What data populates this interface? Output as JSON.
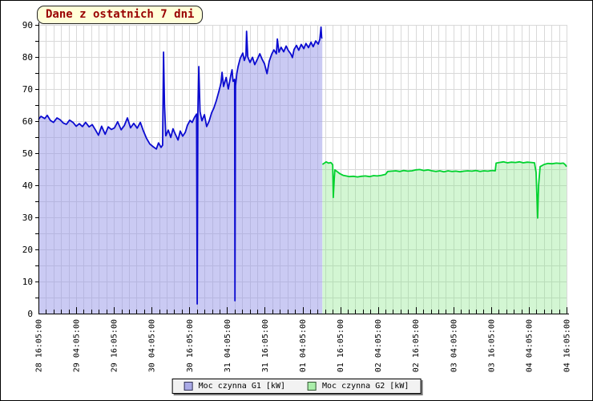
{
  "title": "Dane z ostatnich 7 dni",
  "legend": {
    "items": [
      {
        "label": "Moc czynna G1 [kW]",
        "swatch_color": "#aaaae6",
        "swatch_border": "#333355"
      },
      {
        "label": "Moc czynna G2 [kW]",
        "swatch_color": "#aaeeaa",
        "swatch_border": "#335533"
      }
    ]
  },
  "chart_data": {
    "type": "area",
    "title": "Dane z ostatnich 7 dni",
    "grid": true,
    "legend_position": "bottom-center",
    "x_unit": "hours since 28 16:05:00",
    "x_range": [
      0,
      168
    ],
    "ylim": [
      0,
      90
    ],
    "y_ticks": [
      0,
      10,
      20,
      30,
      40,
      50,
      60,
      70,
      80,
      90
    ],
    "y_minor_step": 5,
    "x_major_step_hours": 12,
    "x_minor_step_hours": 2.4,
    "x_tick_labels": [
      "28 16:05:00",
      "29 04:05:00",
      "29 16:05:00",
      "30 04:05:00",
      "30 16:05:00",
      "31 04:05:00",
      "31 16:05:00",
      "01 04:05:00",
      "01 16:05:00",
      "02 04:05:00",
      "02 16:05:00",
      "03 04:05:00",
      "03 16:05:00",
      "04 04:05:00",
      "04 16:05:00"
    ],
    "colors": {
      "grid": "#d9d9d9",
      "axis": "#000000"
    },
    "series": [
      {
        "name": "Moc czynna G1 [kW]",
        "line_color": "#0b0bd0",
        "fill_color": "rgba(150,150,232,0.5)",
        "points": [
          [
            0,
            60.5
          ],
          [
            0.8,
            61.5
          ],
          [
            2,
            60.8
          ],
          [
            2.8,
            61.8
          ],
          [
            3.8,
            60.2
          ],
          [
            4.8,
            59.6
          ],
          [
            5.9,
            61
          ],
          [
            6.9,
            60.4
          ],
          [
            7.9,
            59.4
          ],
          [
            8.9,
            59
          ],
          [
            9.9,
            60.3
          ],
          [
            11,
            59.6
          ],
          [
            12,
            58.4
          ],
          [
            13,
            59.2
          ],
          [
            14,
            58.3
          ],
          [
            15,
            59.6
          ],
          [
            16.1,
            58.2
          ],
          [
            17.1,
            58.9
          ],
          [
            18.1,
            57.3
          ],
          [
            19.1,
            55.6
          ],
          [
            20.1,
            58.4
          ],
          [
            21.2,
            55.9
          ],
          [
            22.2,
            58.2
          ],
          [
            23.2,
            57.4
          ],
          [
            24.2,
            57.9
          ],
          [
            25.2,
            59.8
          ],
          [
            26.3,
            57.3
          ],
          [
            27.3,
            58.6
          ],
          [
            28.3,
            61
          ],
          [
            29.3,
            57.9
          ],
          [
            30.3,
            59.3
          ],
          [
            31.4,
            57.8
          ],
          [
            32.4,
            59.6
          ],
          [
            33.4,
            56.9
          ],
          [
            34.4,
            54.6
          ],
          [
            35.4,
            52.9
          ],
          [
            36.5,
            52
          ],
          [
            37.5,
            51.3
          ],
          [
            38.2,
            53.2
          ],
          [
            39,
            51.8
          ],
          [
            39.5,
            52.5
          ],
          [
            39.8,
            81.5
          ],
          [
            40.1,
            65
          ],
          [
            40.5,
            55.4
          ],
          [
            41.3,
            57.2
          ],
          [
            42.1,
            54.9
          ],
          [
            42.8,
            57.6
          ],
          [
            43.6,
            55.8
          ],
          [
            44.4,
            54.1
          ],
          [
            45.1,
            56.9
          ],
          [
            45.9,
            55.3
          ],
          [
            46.7,
            56.5
          ],
          [
            47.4,
            58.7
          ],
          [
            48.2,
            60.2
          ],
          [
            48.9,
            59.6
          ],
          [
            49.7,
            61.3
          ],
          [
            50.3,
            62.2
          ],
          [
            50.5,
            3
          ],
          [
            50.7,
            62.5
          ],
          [
            51,
            77
          ],
          [
            51.4,
            63
          ],
          [
            52,
            60.1
          ],
          [
            52.8,
            62
          ],
          [
            53.5,
            58.3
          ],
          [
            54.3,
            60
          ],
          [
            55.1,
            62.6
          ],
          [
            55.8,
            64.1
          ],
          [
            56.6,
            66.4
          ],
          [
            57.4,
            69.3
          ],
          [
            58.1,
            72
          ],
          [
            58.4,
            75.2
          ],
          [
            58.9,
            70.8
          ],
          [
            59.7,
            73.6
          ],
          [
            60.4,
            70
          ],
          [
            61.2,
            74.4
          ],
          [
            61.6,
            76
          ],
          [
            61.9,
            72.4
          ],
          [
            62.4,
            73
          ],
          [
            62.5,
            4
          ],
          [
            62.7,
            71
          ],
          [
            63.1,
            74.8
          ],
          [
            63.5,
            77
          ],
          [
            64.2,
            79.6
          ],
          [
            65,
            81.2
          ],
          [
            65.5,
            78.9
          ],
          [
            66,
            80.4
          ],
          [
            66.2,
            88
          ],
          [
            66.6,
            80
          ],
          [
            67.3,
            78.3
          ],
          [
            68.1,
            79.9
          ],
          [
            68.8,
            77.6
          ],
          [
            69.6,
            79.2
          ],
          [
            70.4,
            81
          ],
          [
            71.1,
            79.4
          ],
          [
            71.9,
            77.9
          ],
          [
            72.7,
            74.8
          ],
          [
            73.4,
            78.6
          ],
          [
            74.2,
            80.9
          ],
          [
            74.9,
            82.2
          ],
          [
            75.7,
            81
          ],
          [
            76,
            85.6
          ],
          [
            76.5,
            81.5
          ],
          [
            77.2,
            83
          ],
          [
            78,
            81.6
          ],
          [
            78.8,
            83.4
          ],
          [
            79.5,
            82
          ],
          [
            80.3,
            80.9
          ],
          [
            80.8,
            79.8
          ],
          [
            81.3,
            82.3
          ],
          [
            82.1,
            83.6
          ],
          [
            82.8,
            82.1
          ],
          [
            83.6,
            83.9
          ],
          [
            84.4,
            82.6
          ],
          [
            85.1,
            84.2
          ],
          [
            85.9,
            82.9
          ],
          [
            86.7,
            84.6
          ],
          [
            87.4,
            83.2
          ],
          [
            88.2,
            85
          ],
          [
            89,
            84
          ],
          [
            89.5,
            85.5
          ],
          [
            89.9,
            89.3
          ],
          [
            90.1,
            86
          ],
          [
            90.3,
            85.8
          ]
        ]
      },
      {
        "name": "Moc czynna G2 [kW]",
        "line_color": "#00d22e",
        "fill_color": "rgba(130,230,130,0.35)",
        "points": [
          [
            90.35,
            46.5
          ],
          [
            90.8,
            46.8
          ],
          [
            91.5,
            47.3
          ],
          [
            92.3,
            46.9
          ],
          [
            93,
            47.1
          ],
          [
            93.6,
            46.4
          ],
          [
            93.8,
            36.2
          ],
          [
            94.1,
            42
          ],
          [
            94.3,
            44.8
          ],
          [
            95.1,
            44.2
          ],
          [
            95.9,
            43.6
          ],
          [
            96.9,
            43.1
          ],
          [
            97.9,
            42.9
          ],
          [
            98.9,
            42.7
          ],
          [
            100.2,
            42.8
          ],
          [
            101.5,
            42.6
          ],
          [
            102.7,
            42.8
          ],
          [
            104,
            42.9
          ],
          [
            105.3,
            42.7
          ],
          [
            106.6,
            43
          ],
          [
            107.8,
            42.9
          ],
          [
            109.1,
            43.1
          ],
          [
            110.4,
            43.4
          ],
          [
            111.1,
            44.3
          ],
          [
            112.4,
            44.4
          ],
          [
            113.7,
            44.5
          ],
          [
            115,
            44.3
          ],
          [
            116.2,
            44.6
          ],
          [
            117.5,
            44.4
          ],
          [
            118.8,
            44.5
          ],
          [
            120.1,
            44.8
          ],
          [
            121.3,
            44.9
          ],
          [
            122.6,
            44.6
          ],
          [
            123.9,
            44.8
          ],
          [
            125.2,
            44.5
          ],
          [
            126.4,
            44.3
          ],
          [
            127.7,
            44.5
          ],
          [
            129,
            44.2
          ],
          [
            130.3,
            44.5
          ],
          [
            131.5,
            44.3
          ],
          [
            132.8,
            44.4
          ],
          [
            134.1,
            44.2
          ],
          [
            135.4,
            44.4
          ],
          [
            136.6,
            44.5
          ],
          [
            137.9,
            44.4
          ],
          [
            139.2,
            44.6
          ],
          [
            140.5,
            44.3
          ],
          [
            141.7,
            44.5
          ],
          [
            143,
            44.4
          ],
          [
            144.3,
            44.6
          ],
          [
            145.3,
            44.5
          ],
          [
            145.6,
            46.9
          ],
          [
            146.6,
            47.1
          ],
          [
            147.9,
            47.3
          ],
          [
            149.2,
            47
          ],
          [
            150.4,
            47.2
          ],
          [
            151.7,
            47.1
          ],
          [
            153,
            47.3
          ],
          [
            154.2,
            47
          ],
          [
            155.5,
            47.2
          ],
          [
            156.8,
            47.1
          ],
          [
            157.8,
            47
          ],
          [
            158.3,
            44
          ],
          [
            158.8,
            29.8
          ],
          [
            159.1,
            40
          ],
          [
            159.6,
            45.8
          ],
          [
            160.9,
            46.5
          ],
          [
            162.1,
            46.8
          ],
          [
            163.4,
            46.7
          ],
          [
            164.7,
            46.9
          ],
          [
            166,
            46.8
          ],
          [
            167,
            46.9
          ],
          [
            167.6,
            46.4
          ],
          [
            168,
            45.8
          ]
        ]
      }
    ]
  }
}
